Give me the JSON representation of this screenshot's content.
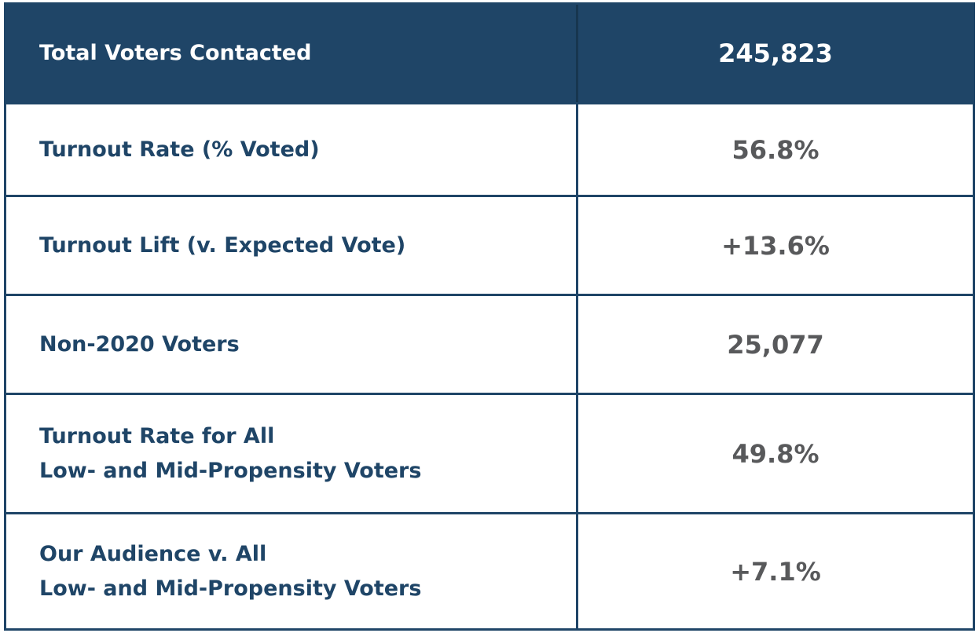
{
  "table": {
    "header": {
      "label": [
        "Total Voters Contacted"
      ],
      "value": "245,823"
    },
    "rows": [
      {
        "label": [
          "Turnout Rate (% Voted)"
        ],
        "value": "56.8%"
      },
      {
        "label": [
          "Turnout Lift (v. Expected Vote)"
        ],
        "value": "+13.6%"
      },
      {
        "label": [
          "Non-2020 Voters"
        ],
        "value": "25,077"
      },
      {
        "label": [
          "Turnout Rate for All",
          "Low- and Mid-Propensity Voters"
        ],
        "value": "49.8%"
      },
      {
        "label": [
          "Our Audience v. All",
          "Low- and Mid-Propensity Voters"
        ],
        "value": "+7.1%"
      }
    ]
  }
}
